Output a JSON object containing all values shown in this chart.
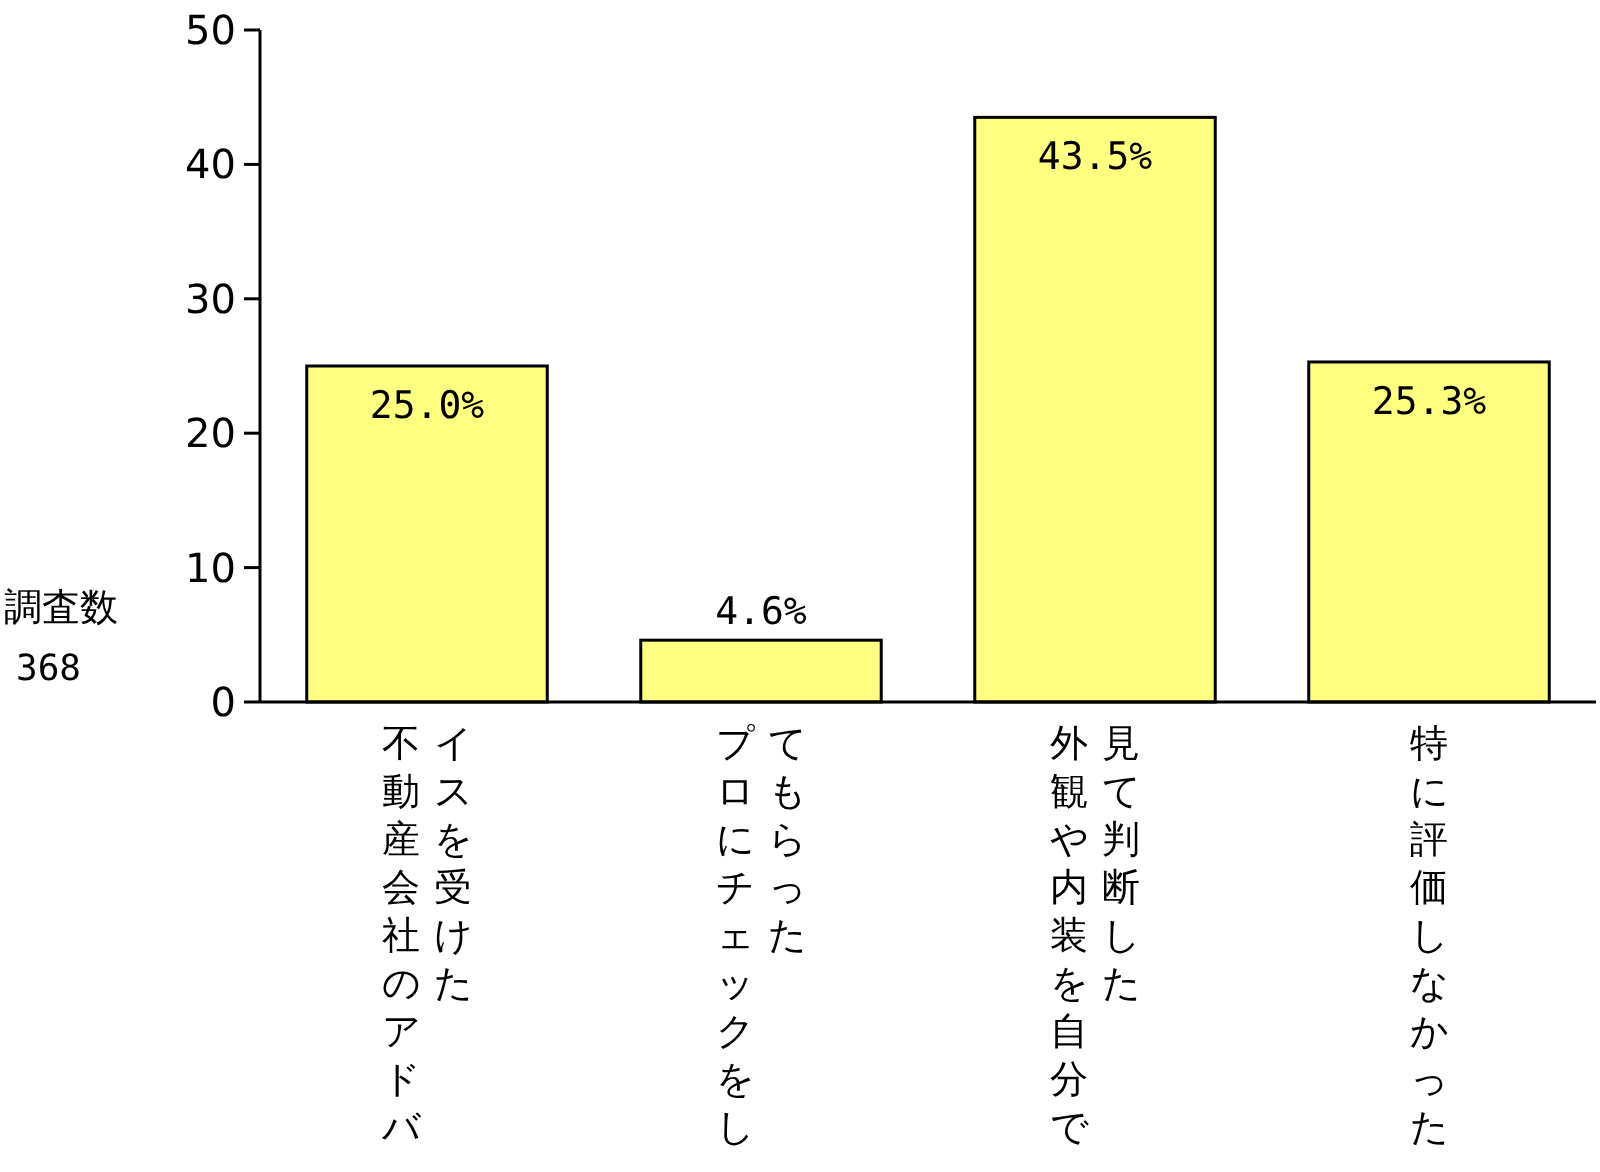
{
  "chart_data": {
    "type": "bar",
    "categories": [
      "不動産会社のアドバイスを受けた",
      "プロにチェックをしてもらった",
      "外観や内装を自分で見て判断した",
      "特に評価しなかった"
    ],
    "values": [
      25.0,
      4.6,
      43.5,
      25.3
    ],
    "value_labels": [
      "25.0%",
      "4.6%",
      "43.5%",
      "25.3%"
    ],
    "color": "#ffff80",
    "ylim": [
      0,
      50
    ],
    "yticks": [
      0,
      10,
      20,
      30,
      40,
      50
    ],
    "ylabel": "調査数",
    "annotations": [
      "368"
    ]
  }
}
